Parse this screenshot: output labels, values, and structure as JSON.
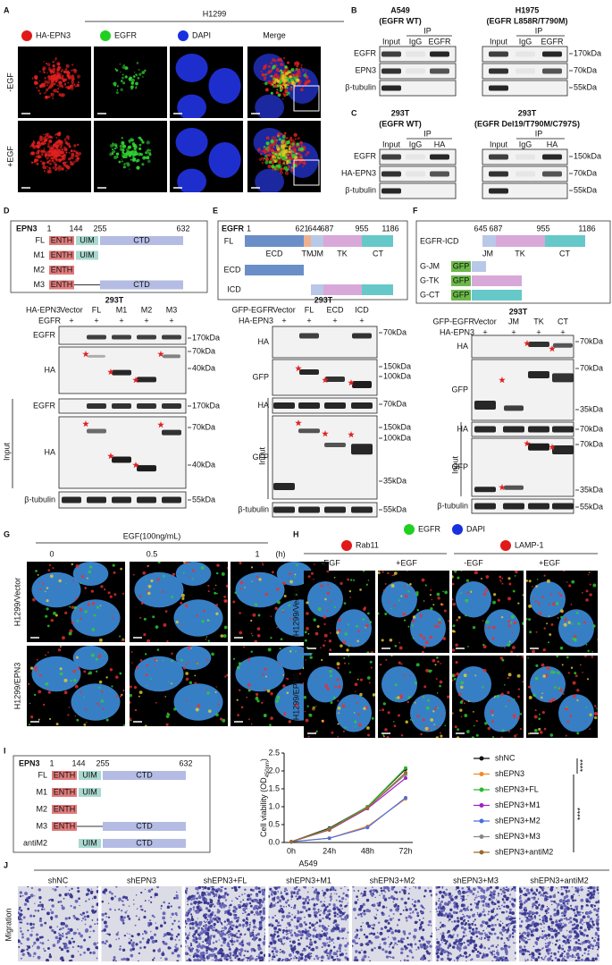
{
  "panel_labels": [
    "A",
    "B",
    "C",
    "D",
    "E",
    "F",
    "G",
    "H",
    "I",
    "J"
  ],
  "A": {
    "cell_line": "H1299",
    "channels": [
      "HA-EPN3",
      "EGFR",
      "DAPI",
      "Merge"
    ],
    "rows": [
      "-EGF",
      "+EGF"
    ]
  },
  "B": {
    "left": {
      "line": "A549",
      "genotype": "(EGFR WT)"
    },
    "right": {
      "line": "H1975",
      "genotype": "(EGFR L858R/T790M)"
    },
    "ip": "IP",
    "lanes": [
      "Input",
      "IgG",
      "EGFR"
    ],
    "rows": [
      "EGFR",
      "EPN3",
      "β-tubulin"
    ],
    "markers": [
      "170kDa",
      "70kDa",
      "55kDa"
    ]
  },
  "C": {
    "left": {
      "line": "293T",
      "genotype": "(EGFR WT)"
    },
    "right": {
      "line": "293T",
      "genotype": "(EGFR Del19/T790M/C797S)"
    },
    "ip": "IP",
    "lanes": [
      "Input",
      "IgG",
      "HA"
    ],
    "rows": [
      "EGFR",
      "HA-EPN3",
      "β-tubulin"
    ],
    "markers": [
      "150kDa",
      "70kDa",
      "55kDa"
    ]
  },
  "D": {
    "protein": "EPN3",
    "positions": [
      1,
      144,
      255,
      632
    ],
    "constructs": [
      "FL",
      "M1",
      "M2",
      "M3"
    ],
    "domains": [
      "ENTH",
      "UIM",
      "CTD"
    ],
    "cell": "293T",
    "treatments": [
      "HA-EPN3",
      "EGFR"
    ],
    "lanes": [
      "Vector",
      "FL",
      "M1",
      "M2",
      "M3"
    ],
    "plus": "+",
    "rows": [
      "EGFR",
      "HA",
      "EGFR",
      "HA",
      "β-tubulin"
    ],
    "markers": [
      "170kDa",
      "70kDa",
      "40kDa",
      "170kDa",
      "70kDa",
      "40kDa",
      "55kDa"
    ],
    "input": "Input"
  },
  "E": {
    "protein": "EGFR",
    "positions": [
      1,
      621,
      644,
      687,
      955,
      1186
    ],
    "constructs": [
      "FL",
      "ECD",
      "ICD"
    ],
    "domains": [
      "ECD",
      "TM",
      "JM",
      "TK",
      "CT"
    ],
    "cell": "293T",
    "treatments": [
      "GFP-EGFR",
      "HA-EPN3"
    ],
    "lanes": [
      "Vector",
      "FL",
      "ECD",
      "ICD"
    ],
    "plus": "+",
    "rows": [
      "HA",
      "GFP",
      "HA",
      "GFP",
      "β-tubulin"
    ],
    "markers": [
      "70kDa",
      "150kDa",
      "100kDa",
      "70kDa",
      "150kDa",
      "100kDa",
      "35kDa",
      "55kDa"
    ],
    "input": "Input"
  },
  "F": {
    "protein": "EGFR-ICD",
    "positions": [
      645,
      687,
      955,
      1186
    ],
    "domains": [
      "JM",
      "TK",
      "CT"
    ],
    "constructs": [
      "G-JM",
      "G-TK",
      "G-CT"
    ],
    "tag": "GFP",
    "cell": "293T",
    "treatments": [
      "GFP-EGFR",
      "HA-EPN3"
    ],
    "lanes": [
      "Vector",
      "JM",
      "TK",
      "CT"
    ],
    "plus": "+",
    "rows": [
      "HA",
      "GFP",
      "HA",
      "GFP",
      "β-tubulin"
    ],
    "markers": [
      "70kDa",
      "70kDa",
      "35kDa",
      "70kDa",
      "70kDa",
      "35kDa",
      "55kDa"
    ],
    "input": "Input"
  },
  "G": {
    "treatment": "EGF(100ng/mL)",
    "times": [
      0,
      0.5,
      1
    ],
    "unit": "(h)",
    "rows": [
      "H1299/Vector",
      "H1299/EPN3"
    ]
  },
  "H": {
    "stains": [
      "EGFR",
      "DAPI"
    ],
    "markers": [
      "Rab11",
      "LAMP-1"
    ],
    "conditions": [
      "-EGF",
      "+EGF",
      "-EGF",
      "+EGF"
    ],
    "rows": [
      "H1299/Vector",
      "H1299/EPN3"
    ]
  },
  "I": {
    "protein": "EPN3",
    "positions": [
      1,
      144,
      255,
      632
    ],
    "constructs": [
      "FL",
      "M1",
      "M2",
      "M3",
      "antiM2"
    ],
    "domains": [
      "ENTH",
      "UIM",
      "CTD"
    ]
  },
  "J": {
    "cell_line": "A549",
    "groups": [
      "shNC",
      "shEPN3",
      "shEPN3+FL",
      "shEPN3+M1",
      "shEPN3+M2",
      "shEPN3+M3",
      "shEPN3+antiM2"
    ],
    "row": "Migration"
  },
  "chart_data": {
    "type": "line",
    "y_label": [
      "Cell viability (OD",
      "450nm",
      ")"
    ],
    "categories": [
      "0h",
      "24h",
      "48h",
      "72h"
    ],
    "series": [
      {
        "name": "shNC",
        "color": "#111111",
        "values": [
          0.02,
          0.4,
          1.0,
          2.05
        ]
      },
      {
        "name": "shEPN3",
        "color": "#f08a24",
        "values": [
          0.02,
          0.12,
          0.45,
          1.22
        ]
      },
      {
        "name": "shEPN3+FL",
        "color": "#2db82d",
        "values": [
          0.02,
          0.38,
          1.0,
          2.08
        ]
      },
      {
        "name": "shEPN3+M1",
        "color": "#a020c8",
        "values": [
          0.02,
          0.35,
          0.95,
          1.8
        ]
      },
      {
        "name": "shEPN3+M2",
        "color": "#4a6ee0",
        "values": [
          0.02,
          0.12,
          0.42,
          1.25
        ]
      },
      {
        "name": "shEPN3+M3",
        "color": "#888888",
        "values": [
          0.02,
          0.37,
          0.98,
          1.9
        ]
      },
      {
        "name": "shEPN3+antiM2",
        "color": "#9a6a2a",
        "values": [
          0.02,
          0.36,
          0.97,
          1.95
        ]
      }
    ],
    "ylim": [
      0,
      2.5
    ],
    "yticks": [
      {
        "value": 0,
        "label": "0.0"
      },
      0.5,
      {
        "value": 1,
        "label": "1.0"
      },
      1.5,
      {
        "value": 2,
        "label": "2.0"
      },
      2.5
    ],
    "significance": [
      "****",
      "****"
    ]
  }
}
